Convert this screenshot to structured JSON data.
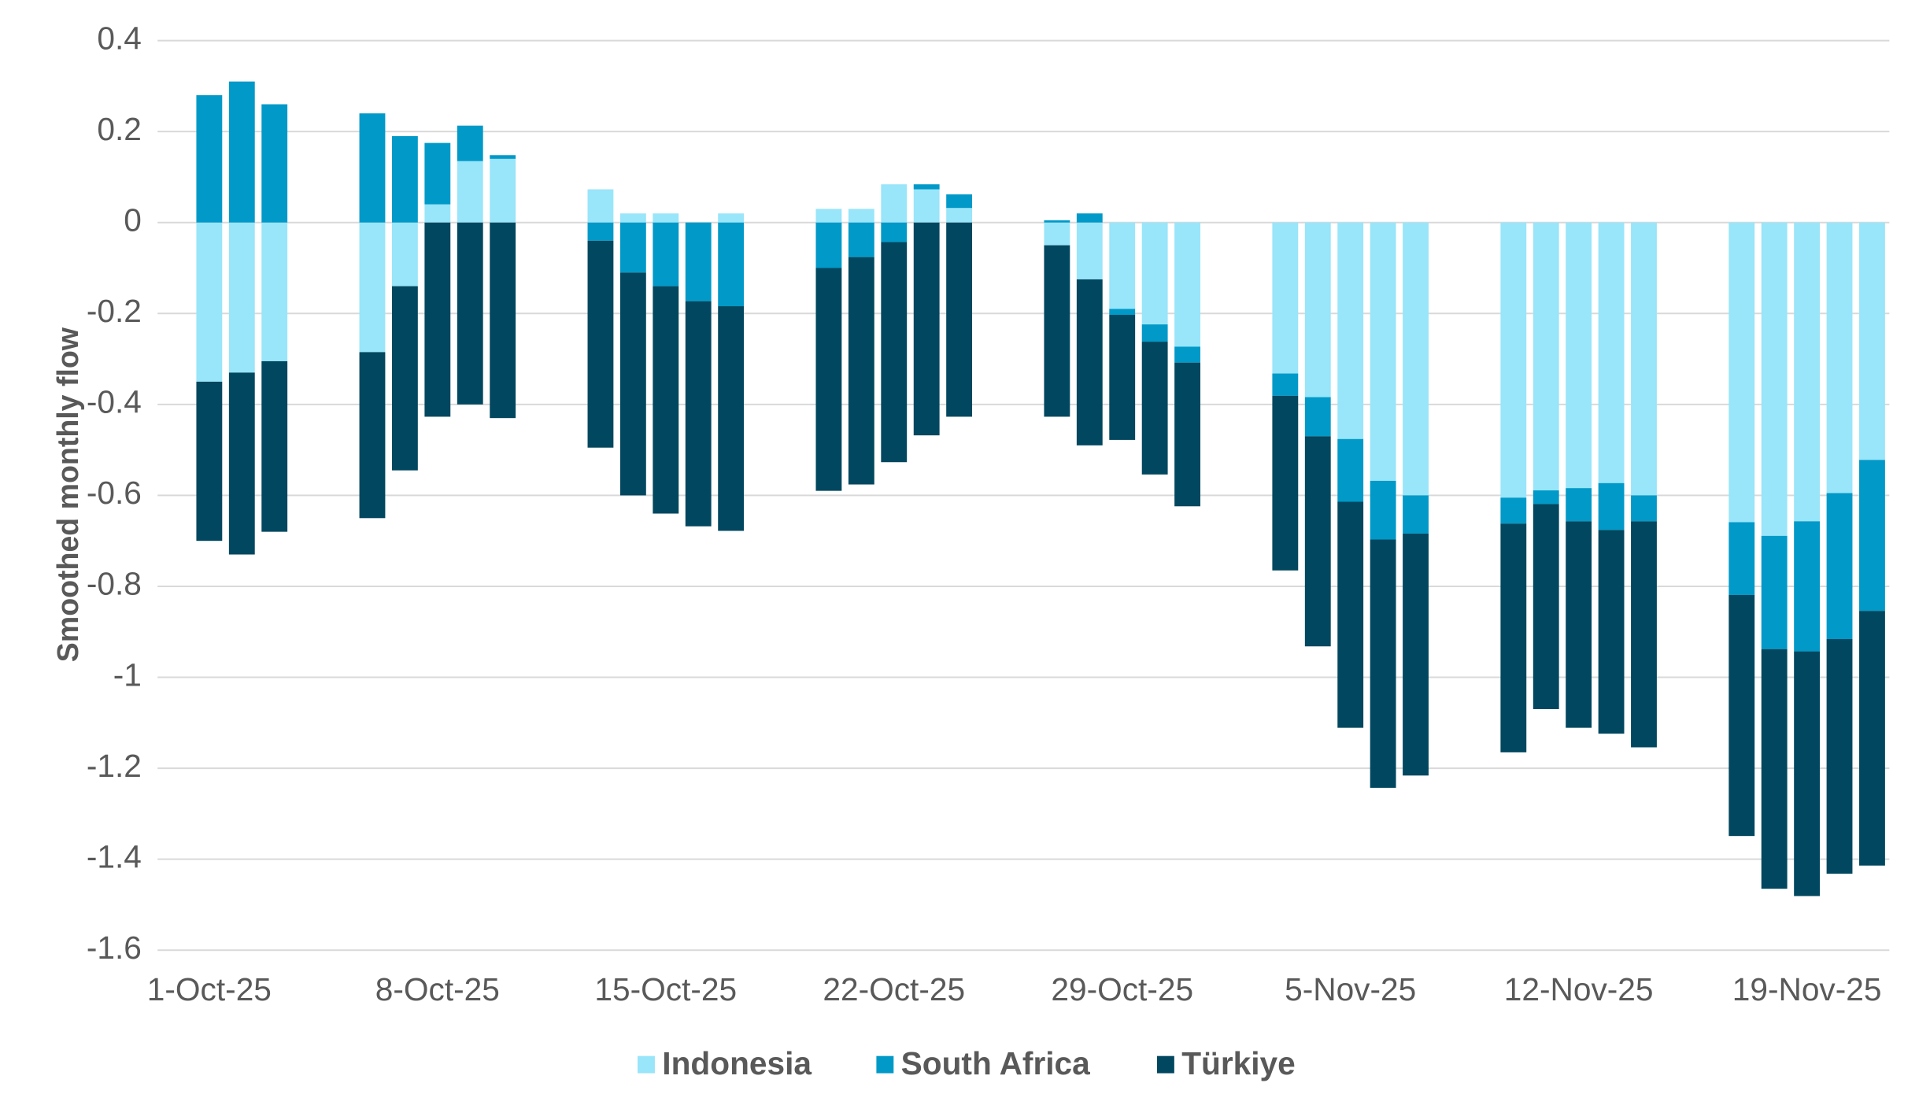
{
  "chart_data": {
    "type": "stacked-bar",
    "y_axis_label": "Smoothed monthly flow",
    "categories": [
      "1-Oct-25",
      null,
      null,
      null,
      null,
      null,
      null,
      "8-Oct-25",
      null,
      null,
      null,
      null,
      null,
      null,
      "15-Oct-25",
      null,
      null,
      null,
      null,
      null,
      null,
      "22-Oct-25",
      null,
      null,
      null,
      null,
      null,
      null,
      "29-Oct-25",
      null,
      null,
      null,
      null,
      null,
      null,
      "5-Nov-25",
      null,
      null,
      null,
      null,
      null,
      null,
      "12-Nov-25",
      null,
      null,
      null,
      null,
      null,
      null,
      "19-Nov-25",
      null,
      null
    ],
    "series": [
      {
        "name": "Indonesia",
        "color": "#99e5fa",
        "values": [
          -0.35,
          -0.33,
          -0.305,
          null,
          null,
          -0.285,
          -0.14,
          0.04,
          0.135,
          0.14,
          null,
          null,
          0.073,
          0.02,
          0.02,
          0,
          0.02,
          null,
          null,
          0.03,
          0.03,
          0.084,
          0.073,
          0.032,
          null,
          null,
          -0.05,
          -0.125,
          -0.19,
          -0.224,
          -0.273,
          null,
          null,
          -0.332,
          -0.384,
          -0.476,
          -0.568,
          -0.6,
          null,
          null,
          -0.605,
          -0.589,
          -0.584,
          -0.573,
          -0.6,
          null,
          null,
          -0.659,
          -0.689,
          -0.657,
          -0.595,
          -0.522
        ]
      },
      {
        "name": "South Africa",
        "color": "#0099c8",
        "values": [
          0.28,
          0.31,
          0.26,
          null,
          null,
          0.24,
          0.19,
          0.135,
          0.078,
          0.008,
          null,
          null,
          -0.04,
          -0.11,
          -0.14,
          -0.173,
          -0.184,
          null,
          null,
          -0.1,
          -0.076,
          -0.043,
          0.011,
          0.03,
          null,
          null,
          0.005,
          0.02,
          -0.013,
          -0.038,
          -0.035,
          null,
          null,
          -0.049,
          -0.086,
          -0.138,
          -0.129,
          -0.084,
          null,
          null,
          -0.057,
          -0.03,
          -0.073,
          -0.103,
          -0.057,
          null,
          null,
          -0.16,
          -0.249,
          -0.286,
          -0.321,
          -0.332
        ]
      },
      {
        "name": "Türkiye",
        "color": "#00475f",
        "values": [
          -0.35,
          -0.4,
          -0.375,
          null,
          null,
          -0.365,
          -0.405,
          -0.427,
          -0.4,
          -0.43,
          null,
          null,
          -0.455,
          -0.49,
          -0.5,
          -0.495,
          -0.494,
          null,
          null,
          -0.49,
          -0.5,
          -0.484,
          -0.468,
          -0.427,
          null,
          null,
          -0.377,
          -0.365,
          -0.275,
          -0.292,
          -0.316,
          null,
          null,
          -0.384,
          -0.462,
          -0.497,
          -0.546,
          -0.532,
          null,
          null,
          -0.503,
          -0.451,
          -0.454,
          -0.448,
          -0.497,
          null,
          null,
          -0.53,
          -0.527,
          -0.538,
          -0.516,
          -0.56
        ]
      }
    ],
    "ylim": [
      -1.6,
      0.4
    ],
    "yticks": [
      0.4,
      0.2,
      0,
      -0.2,
      -0.4,
      -0.6,
      -0.8,
      -1,
      -1.2,
      -1.4,
      -1.6
    ],
    "grid": true,
    "legend": "bottom"
  }
}
